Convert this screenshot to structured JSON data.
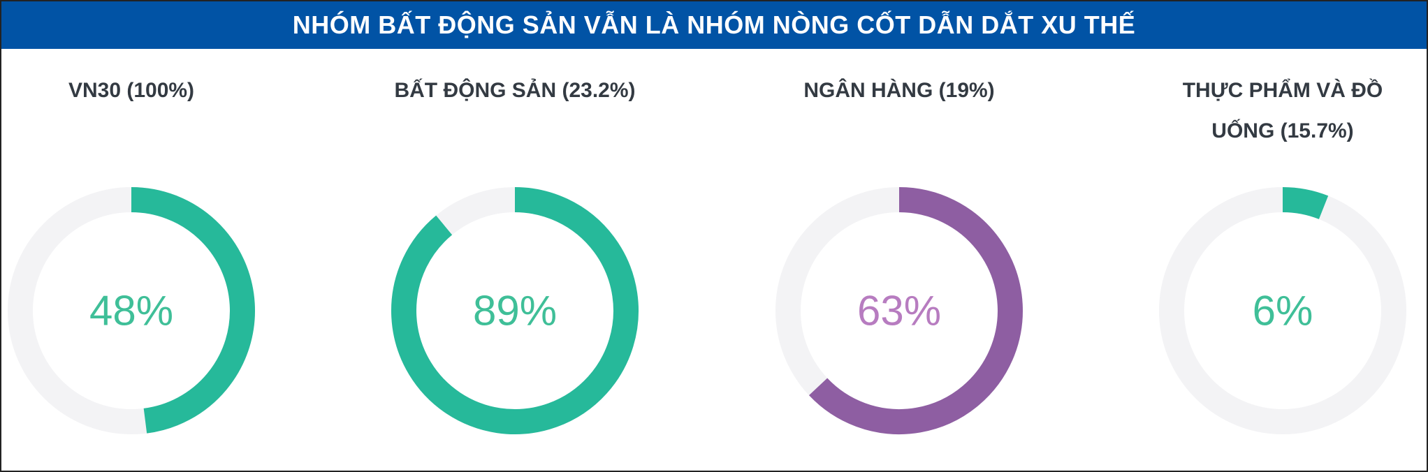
{
  "title": "NHÓM BẤT ĐỘNG SẢN VẪN LÀ NHÓM NÒNG CỐT DẪN DẮT XU THẾ",
  "chart_data": [
    {
      "type": "donut",
      "title": "VN30 (100%)",
      "values": [
        48
      ],
      "value_labels": [
        "48%"
      ],
      "ylim": [
        0,
        100
      ],
      "color": "#26b99a",
      "label_color": "#3fbf98",
      "track_color": "#f3f3f5"
    },
    {
      "type": "donut",
      "title": "BẤT ĐỘNG SẢN (23.2%)",
      "values": [
        89
      ],
      "value_labels": [
        "89%"
      ],
      "ylim": [
        0,
        100
      ],
      "color": "#26b99a",
      "label_color": "#3fbf98",
      "track_color": "#f3f3f5"
    },
    {
      "type": "donut",
      "title": "NGÂN HÀNG (19%)",
      "values": [
        63
      ],
      "value_labels": [
        "63%"
      ],
      "ylim": [
        0,
        100
      ],
      "color": "#8e5ea2",
      "label_color": "#b77cc0",
      "track_color": "#f3f3f5"
    },
    {
      "type": "donut",
      "title": "THỰC PHẨM VÀ ĐỒ UỐNG (15.7%)",
      "values": [
        6
      ],
      "value_labels": [
        "6%"
      ],
      "ylim": [
        0,
        100
      ],
      "color": "#26b99a",
      "label_color": "#3fbf98",
      "track_color": "#f3f3f5"
    }
  ]
}
